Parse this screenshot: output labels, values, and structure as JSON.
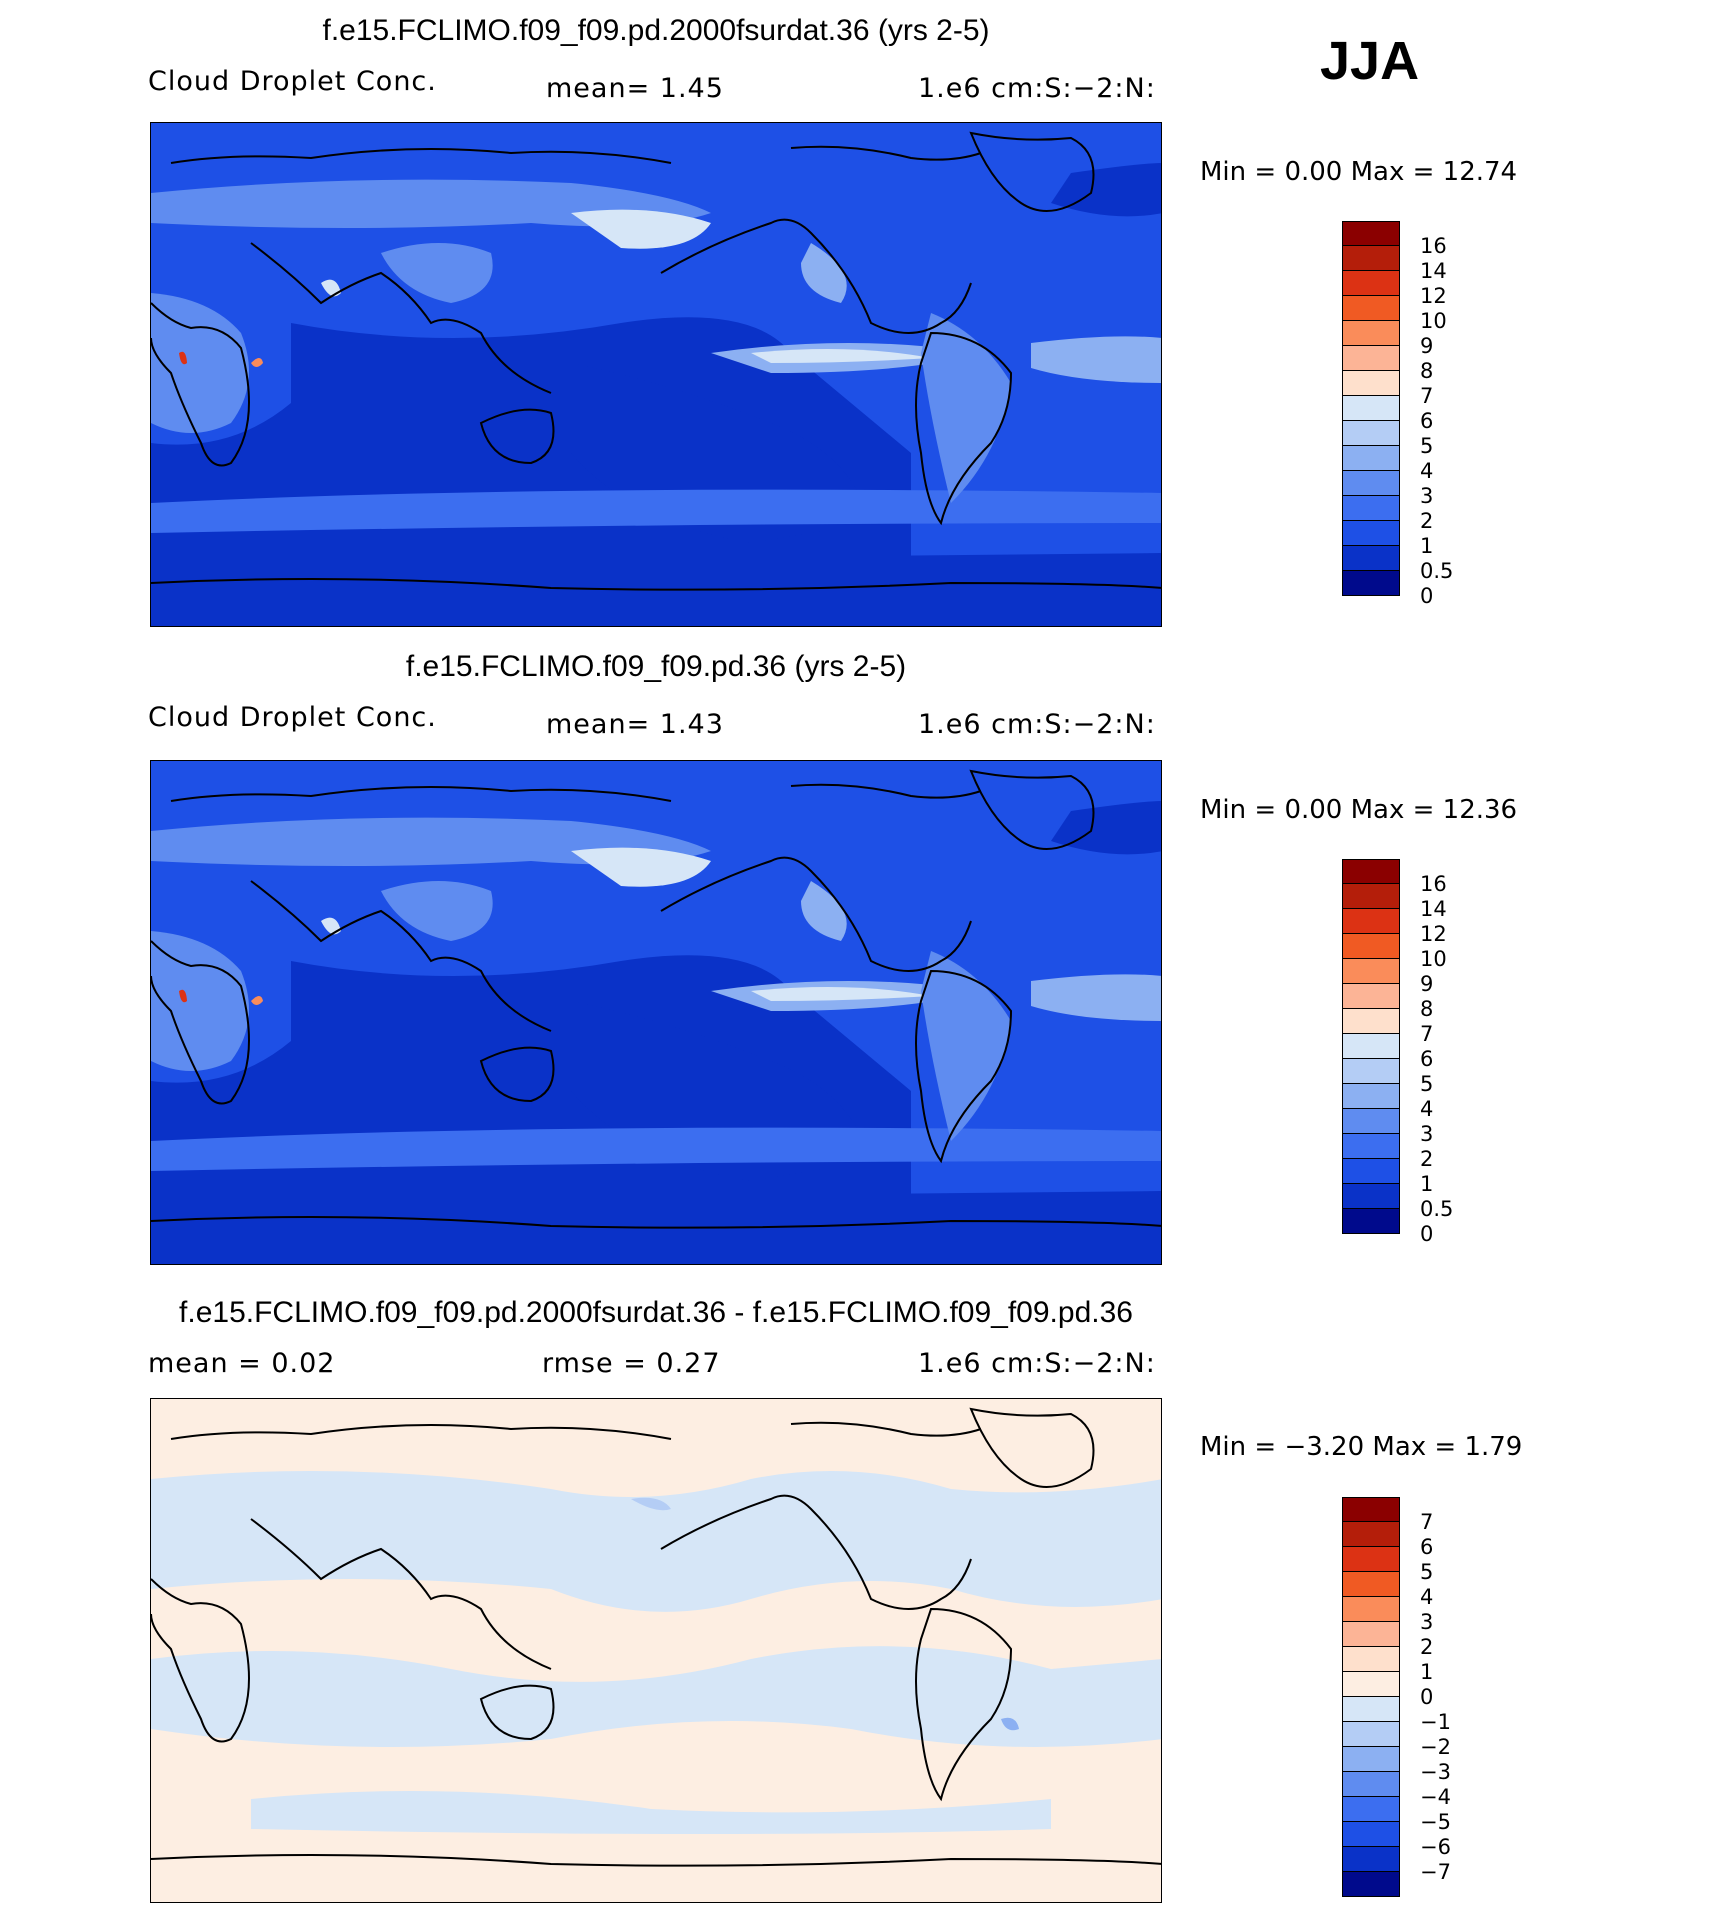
{
  "season": "JJA",
  "panels": [
    {
      "title": "f.e15.FCLIMO.f09_f09.pd.2000fsurdat.36 (yrs 2-5)",
      "variable": "Cloud Droplet Conc.",
      "stat": "mean=    1.45",
      "units": "1.e6 cm:S:−2:N:",
      "minmax": "Min =     0.00 Max =    12.74",
      "colorbar_labels": [
        "16",
        "14",
        "12",
        "10",
        "9",
        "8",
        "7",
        "6",
        "5",
        "4",
        "3",
        "2",
        "1",
        "0.5",
        "0"
      ],
      "colorbar_colors": [
        "#8b0000",
        "#b41e0a",
        "#dc3214",
        "#f05a23",
        "#fa8c5a",
        "#fcb496",
        "#fee0cc",
        "#d6e6f7",
        "#b4cdf5",
        "#8cb0f2",
        "#5f8cf0",
        "#3c6ef0",
        "#1e50e6",
        "#0a32c8",
        "#000a8c"
      ]
    },
    {
      "title": "f.e15.FCLIMO.f09_f09.pd.36 (yrs 2-5)",
      "variable": "Cloud Droplet Conc.",
      "stat": "mean=    1.43",
      "units": "1.e6 cm:S:−2:N:",
      "minmax": "Min =     0.00 Max =    12.36",
      "colorbar_labels": [
        "16",
        "14",
        "12",
        "10",
        "9",
        "8",
        "7",
        "6",
        "5",
        "4",
        "3",
        "2",
        "1",
        "0.5",
        "0"
      ],
      "colorbar_colors": [
        "#8b0000",
        "#b41e0a",
        "#dc3214",
        "#f05a23",
        "#fa8c5a",
        "#fcb496",
        "#fee0cc",
        "#d6e6f7",
        "#b4cdf5",
        "#8cb0f2",
        "#5f8cf0",
        "#3c6ef0",
        "#1e50e6",
        "#0a32c8",
        "#000a8c"
      ]
    },
    {
      "title": "f.e15.FCLIMO.f09_f09.pd.2000fsurdat.36 - f.e15.FCLIMO.f09_f09.pd.36",
      "stat_left": "mean =    0.02",
      "stat": "rmse =    0.27",
      "units": "1.e6 cm:S:−2:N:",
      "minmax": "Min =   −3.20 Max =    1.79",
      "colorbar_labels": [
        "7",
        "6",
        "5",
        "4",
        "3",
        "2",
        "1",
        "0",
        "−1",
        "−2",
        "−3",
        "−4",
        "−5",
        "−6",
        "−7"
      ],
      "colorbar_colors": [
        "#8b0000",
        "#b41e0a",
        "#dc3214",
        "#f05a23",
        "#fa8c5a",
        "#fcb496",
        "#fee0cc",
        "#fdeee2",
        "#d6e6f7",
        "#b4cdf5",
        "#8cb0f2",
        "#5f8cf0",
        "#3c6ef0",
        "#1e50e6",
        "#0a32c8",
        "#000a8c"
      ]
    }
  ]
}
